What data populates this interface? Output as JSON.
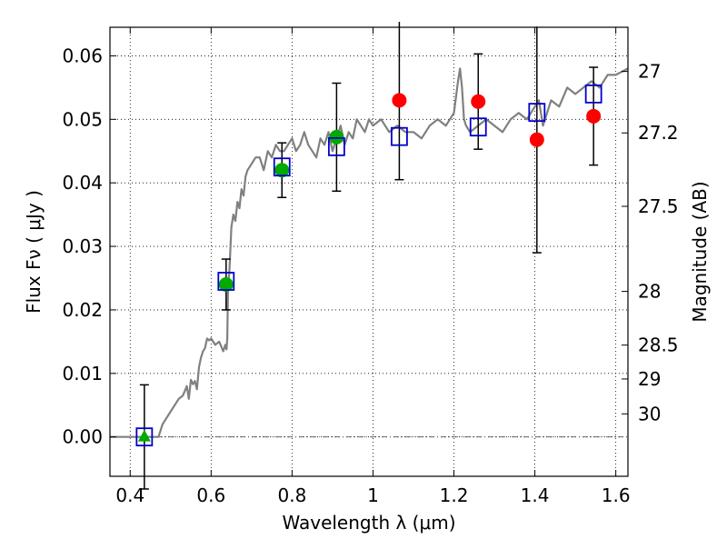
{
  "chart_data": {
    "type": "scatter",
    "xlabel": "Wavelength  λ (μm)",
    "ylabel": "Flux  Fν  ( μJy )",
    "y2label": "Magnitude (AB)",
    "xlim": [
      0.35,
      1.63
    ],
    "ylim": [
      -0.0062,
      0.0645
    ],
    "xticks": [
      0.4,
      0.6,
      0.8,
      1.0,
      1.2,
      1.4,
      1.6
    ],
    "xtick_labels": [
      "0.4",
      "0.6",
      "0.8",
      "1",
      "1.2",
      "1.4",
      "1.6"
    ],
    "yticks": [
      0.0,
      0.01,
      0.02,
      0.03,
      0.04,
      0.05,
      0.06
    ],
    "ytick_labels": [
      "0.00",
      "0.01",
      "0.02",
      "0.03",
      "0.04",
      "0.05",
      "0.06"
    ],
    "mag_ticks": [
      27,
      27.2,
      27.5,
      28,
      28.5,
      29,
      30
    ],
    "mag_tick_labels": [
      "27",
      "27.2",
      "27.5",
      "28",
      "28.5",
      "29",
      "30"
    ],
    "grid": true,
    "zero_line": true,
    "colors": {
      "template": "#808080",
      "model": "#0000cc",
      "detection": "#00aa00",
      "upper": "#ff0000",
      "errorbar": "#000000"
    },
    "template_sed": {
      "x": [
        0.35,
        0.47,
        0.48,
        0.5,
        0.52,
        0.53,
        0.54,
        0.545,
        0.55,
        0.555,
        0.56,
        0.565,
        0.57,
        0.575,
        0.58,
        0.585,
        0.59,
        0.595,
        0.6,
        0.61,
        0.62,
        0.63,
        0.635,
        0.638,
        0.64,
        0.642,
        0.645,
        0.65,
        0.655,
        0.66,
        0.665,
        0.67,
        0.675,
        0.68,
        0.685,
        0.69,
        0.7,
        0.71,
        0.72,
        0.73,
        0.74,
        0.75,
        0.76,
        0.77,
        0.78,
        0.79,
        0.8,
        0.81,
        0.82,
        0.83,
        0.84,
        0.85,
        0.86,
        0.87,
        0.88,
        0.89,
        0.9,
        0.91,
        0.92,
        0.93,
        0.94,
        0.95,
        0.96,
        0.97,
        0.98,
        0.99,
        1.0,
        1.02,
        1.04,
        1.06,
        1.08,
        1.1,
        1.12,
        1.14,
        1.16,
        1.18,
        1.2,
        1.21,
        1.215,
        1.22,
        1.225,
        1.23,
        1.24,
        1.26,
        1.28,
        1.3,
        1.32,
        1.34,
        1.36,
        1.38,
        1.4,
        1.41,
        1.42,
        1.44,
        1.46,
        1.48,
        1.5,
        1.52,
        1.54,
        1.56,
        1.58,
        1.6,
        1.63
      ],
      "y": [
        0.0,
        0.0,
        0.002,
        0.004,
        0.006,
        0.0065,
        0.008,
        0.006,
        0.009,
        0.0083,
        0.0088,
        0.0075,
        0.011,
        0.0125,
        0.0135,
        0.014,
        0.0155,
        0.0152,
        0.0155,
        0.0145,
        0.015,
        0.0135,
        0.0145,
        0.0138,
        0.0155,
        0.024,
        0.026,
        0.033,
        0.035,
        0.034,
        0.037,
        0.036,
        0.039,
        0.038,
        0.041,
        0.042,
        0.043,
        0.044,
        0.044,
        0.042,
        0.045,
        0.044,
        0.046,
        0.045,
        0.045,
        0.046,
        0.047,
        0.045,
        0.046,
        0.048,
        0.046,
        0.045,
        0.044,
        0.047,
        0.046,
        0.048,
        0.045,
        0.047,
        0.049,
        0.046,
        0.048,
        0.047,
        0.05,
        0.049,
        0.048,
        0.05,
        0.049,
        0.05,
        0.048,
        0.049,
        0.048,
        0.048,
        0.047,
        0.049,
        0.05,
        0.049,
        0.051,
        0.056,
        0.058,
        0.055,
        0.05,
        0.049,
        0.048,
        0.049,
        0.05,
        0.049,
        0.048,
        0.05,
        0.051,
        0.05,
        0.052,
        0.053,
        0.049,
        0.053,
        0.052,
        0.055,
        0.054,
        0.055,
        0.056,
        0.055,
        0.057,
        0.057,
        0.058
      ]
    },
    "model_points": {
      "x": [
        0.435,
        0.637,
        0.775,
        0.91,
        1.065,
        1.26,
        1.405,
        1.545
      ],
      "y": [
        0.0,
        0.0245,
        0.0425,
        0.0457,
        0.0473,
        0.0488,
        0.0511,
        0.054
      ]
    },
    "detections": {
      "x": [
        0.637,
        0.775,
        0.91
      ],
      "y": [
        0.024,
        0.042,
        0.0472
      ],
      "err": [
        0.004,
        0.0043,
        0.0085
      ]
    },
    "triangle": {
      "x": [
        0.435
      ],
      "y": [
        0.0
      ],
      "err": [
        0.0082
      ]
    },
    "measurements_red": {
      "x": [
        1.065,
        1.26,
        1.405,
        1.545
      ],
      "y": [
        0.053,
        0.0528,
        0.0468,
        0.0505
      ],
      "err": [
        0.0125,
        0.0075,
        0.0178,
        0.0077
      ]
    }
  }
}
